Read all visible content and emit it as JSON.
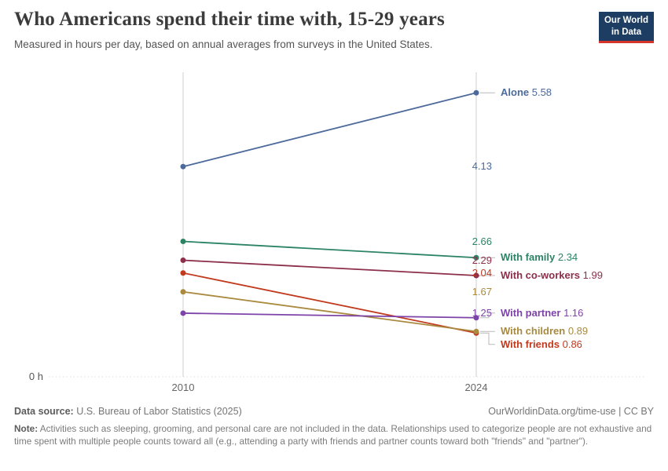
{
  "header": {
    "title": "Who Americans spend their time with, 15-29 years",
    "subtitle": "Measured in hours per day, based on annual averages from surveys in the United States.",
    "logo": {
      "line1": "Our World",
      "line2": "in Data",
      "bg": "#1d3d63",
      "accent": "#d7352c"
    }
  },
  "chart_data": {
    "type": "line",
    "subtype": "slope-chart",
    "x": [
      2010,
      2024
    ],
    "x_labels": [
      "2010",
      "2024"
    ],
    "series": [
      {
        "name": "Alone",
        "values": [
          4.13,
          5.58
        ],
        "color": "#4C6A9C"
      },
      {
        "name": "With family",
        "values": [
          2.66,
          2.34
        ],
        "color": "#2C8465"
      },
      {
        "name": "With co-workers",
        "values": [
          2.29,
          1.99
        ],
        "color": "#8C2F4B"
      },
      {
        "name": "With friends",
        "values": [
          2.04,
          0.86
        ],
        "color": "#C13A1E"
      },
      {
        "name": "With children",
        "values": [
          1.67,
          0.89
        ],
        "color": "#A98A3F"
      },
      {
        "name": "With partner",
        "values": [
          1.25,
          1.16
        ],
        "color": "#7E43A9"
      }
    ],
    "ylim": [
      0,
      6
    ],
    "baseline_label": "0 h",
    "grid": "two vertical year lines, dotted zero baseline",
    "legend_position": "inline labels right of 2024 line, start values left of 2010 line"
  },
  "footer": {
    "source_label": "Data source:",
    "source_text": " U.S. Bureau of Labor Statistics (2025)",
    "attribution": "OurWorldinData.org/time-use | CC BY",
    "note_label": "Note:",
    "note_text": " Activities such as sleeping, grooming, and personal care are not included in the data. Relationships used to categorize people are not exhaustive and time spent with multiple people counts toward all (e.g., attending a party with friends and partner counts toward both \"friends\" and \"partner\")."
  }
}
